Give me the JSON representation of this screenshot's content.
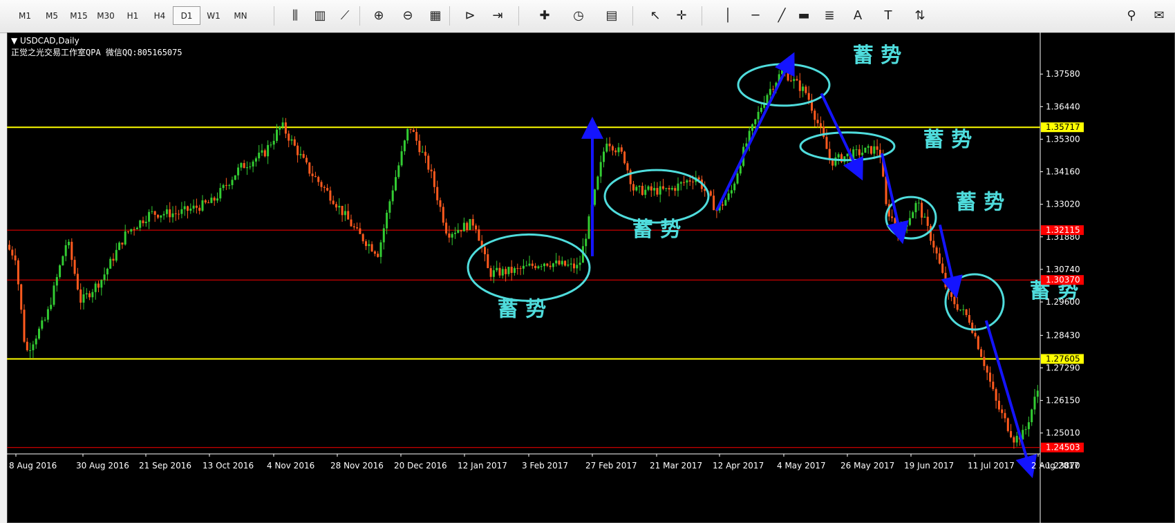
{
  "toolbar": {
    "timeframes": [
      "M1",
      "M5",
      "M15",
      "M30",
      "H1",
      "H4",
      "D1",
      "W1",
      "MN"
    ],
    "active_timeframe": "D1",
    "icons": [
      "bar-chart-icon",
      "candlestick-icon",
      "line-chart-icon",
      "zoom-in-icon",
      "zoom-out-icon",
      "tile-windows-icon",
      "chart-shift-icon",
      "autoscroll-icon",
      "new-chart-icon",
      "periods-icon",
      "templates-icon",
      "cursor-icon",
      "crosshair-icon",
      "vertical-line-icon",
      "horizontal-line-icon",
      "trendline-icon",
      "rectangle-icon",
      "fibonacci-icon",
      "text-icon",
      "text-label-icon",
      "arrows-icon",
      "search-icon",
      "chat-icon"
    ]
  },
  "chart_data": {
    "type": "candlestick",
    "symbol_label": "▼ USDCAD,Daily",
    "watermark": "正觉之光交易工作室QPA 微信QQ:805165075",
    "y_ticks": [
      "1.37580",
      "1.36440",
      "1.35300",
      "1.34160",
      "1.33020",
      "1.31880",
      "1.30740",
      "1.29600",
      "1.28430",
      "1.27290",
      "1.26150",
      "1.25010",
      "1.23870"
    ],
    "ylim": [
      1.2377,
      1.3871
    ],
    "x_ticks": [
      "8 Aug 2016",
      "30 Aug 2016",
      "21 Sep 2016",
      "13 Oct 2016",
      "4 Nov 2016",
      "28 Nov 2016",
      "20 Dec 2016",
      "12 Jan 2017",
      "3 Feb 2017",
      "27 Feb 2017",
      "21 Mar 2017",
      "12 Apr 2017",
      "4 May 2017",
      "26 May 2017",
      "19 Jun 2017",
      "11 Jul 2017",
      "2 Aug 2017"
    ],
    "horizontal_lines": [
      {
        "value": 1.35717,
        "label": "1.35717",
        "color": "#ffff00"
      },
      {
        "value": 1.27605,
        "label": "1.27605",
        "color": "#ffff00"
      },
      {
        "value": 1.32115,
        "label": "1.32115",
        "color": "#ff0000"
      },
      {
        "value": 1.3037,
        "label": "1.30370",
        "color": "#ff0000"
      },
      {
        "value": 1.24503,
        "label": "1.24503",
        "color": "#ff0000"
      }
    ],
    "consolidation_label": "蓄 势",
    "consolidation_zones": [
      {
        "date": "3 Feb 2017",
        "price": 1.308,
        "label_price": 1.291
      },
      {
        "date": "21 Mar 2017",
        "price": 1.333,
        "label_price": 1.319
      },
      {
        "date": "4 May 2017",
        "price": 1.372,
        "label_price": 1.38
      },
      {
        "date": "26 May 2017",
        "price": 1.3505,
        "label_price": 1.3505
      },
      {
        "date": "19 Jun 2017",
        "price": 1.3255,
        "label_price": 1.3285
      },
      {
        "date": "11 Jul 2017",
        "price": 1.296,
        "label_price": 1.2975
      }
    ],
    "colors": {
      "bull": "#33cc33",
      "bear": "#ff5a1e",
      "ellipse": "#4fdcdc",
      "arrow": "#1414ff",
      "level": "#8c8c8c",
      "text": "#ffffff"
    }
  }
}
